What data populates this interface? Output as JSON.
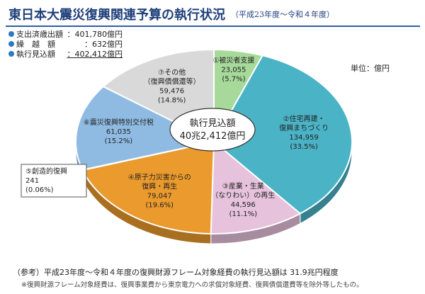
{
  "header": {
    "title": "東日本大震災復興関連予算の執行状況",
    "subtitle": "（平成23年度～令和４年度）"
  },
  "summary": [
    {
      "label": "支出済歳出額",
      "value": "：401,780億円"
    },
    {
      "label": "繰　越　額",
      "value": "：632億円"
    },
    {
      "label": "執行見込額",
      "value": "：402,412億円"
    }
  ],
  "unit": "単位：億円",
  "center": {
    "line1": "執行見込額",
    "line2": "40兆2,412億円"
  },
  "chart_data": {
    "type": "pie",
    "center_label": "執行見込額 40兆2,412億円",
    "unit": "億円",
    "slices": [
      {
        "name": "①被災者支援",
        "value": 23055,
        "value_label": "23,055",
        "pct": "(5.7%)",
        "color": "#a6d99a"
      },
      {
        "name": "②住宅再建・復興まちづくり",
        "line1": "②住宅再建・",
        "line2": "復興まちづくり",
        "value": 134959,
        "value_label": "134,959",
        "pct": "(33.5%)",
        "color": "#4ab3c6"
      },
      {
        "name": "③産業・生業（なりわい）の再生",
        "line1": "③産業・生業",
        "line2": "（なりわい）の再生",
        "value": 44596,
        "value_label": "44,596",
        "pct": "(11.1%)",
        "color": "#e6c2dc"
      },
      {
        "name": "④原子力災害からの復興・再生",
        "line1": "④原子力災害からの",
        "line2": "復興・再生",
        "value": 79047,
        "value_label": "79,047",
        "pct": "(19.6%)",
        "color": "#eb9a2d"
      },
      {
        "name": "⑤創造的復興",
        "value": 241,
        "value_label": "241",
        "pct": "(0.06%)",
        "color": "#f4d7b2"
      },
      {
        "name": "⑥震災復興特別交付税",
        "value": 61035,
        "value_label": "61,035",
        "pct": "(15.2%)",
        "color": "#8fbbe3"
      },
      {
        "name": "⑦その他（復興債償還等）",
        "line1": "⑦その他",
        "line2": "（復興債償還等）",
        "value": 59476,
        "value_label": "59,476",
        "pct": "(14.8%)",
        "color": "#d9d9d9"
      }
    ]
  },
  "footnotes": {
    "line1": "（参考）平成23年度～令和４年度の復興財源フレーム対象経費の執行見込額は 31.9兆円程度",
    "line2": "※復興財源フレーム対象経費は、復興事業費から東京電力への求償対象経費、復興債償還費等を除外等したもの。"
  }
}
